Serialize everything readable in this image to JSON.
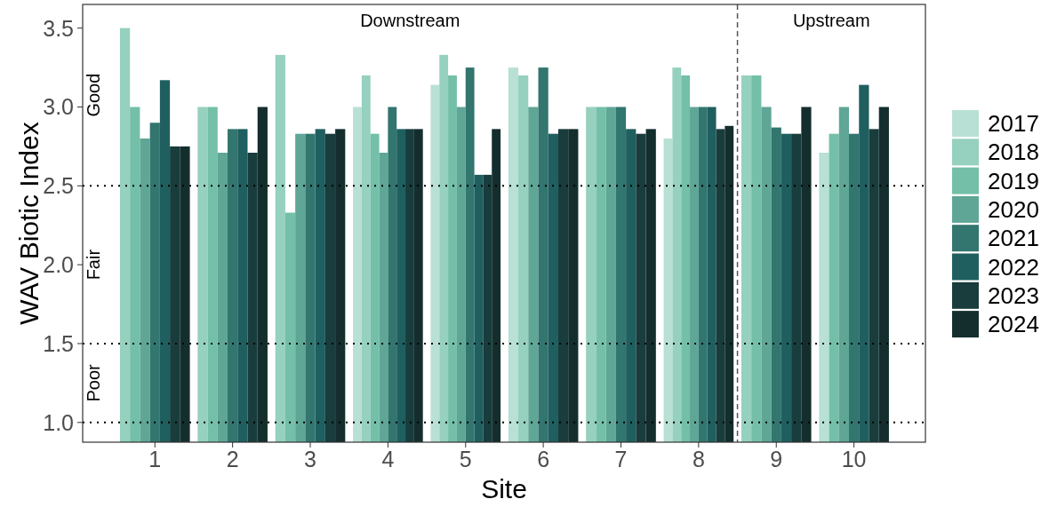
{
  "chart_data": {
    "type": "bar",
    "xlabel": "Site",
    "ylabel": "WAV Biotic Index",
    "x": [
      1,
      2,
      3,
      4,
      5,
      6,
      7,
      8,
      9,
      10
    ],
    "xlim": [
      0.07,
      10.92
    ],
    "xticks": [
      1,
      2,
      3,
      4,
      5,
      6,
      7,
      8,
      9,
      10
    ],
    "ylim": [
      0.875,
      3.65
    ],
    "yticks": [
      {
        "value": 1,
        "label": "1.0"
      },
      1.5,
      {
        "value": 2,
        "label": "2.0"
      },
      2.5,
      {
        "value": 3,
        "label": "3.0"
      },
      3.5
    ],
    "series": [
      {
        "name": "2017",
        "color": "#b8e0d5",
        "values": [
          null,
          null,
          null,
          3.0,
          3.14,
          3.25,
          null,
          2.8,
          null,
          2.71
        ]
      },
      {
        "name": "2018",
        "color": "#96d0bf",
        "values": [
          3.5,
          3.0,
          3.33,
          3.2,
          3.33,
          3.2,
          3.0,
          3.25,
          3.2,
          null
        ]
      },
      {
        "name": "2019",
        "color": "#74bfa8",
        "values": [
          3.0,
          3.0,
          2.33,
          2.83,
          3.2,
          null,
          3.0,
          3.2,
          3.2,
          2.83
        ]
      },
      {
        "name": "2020",
        "color": "#5fa696",
        "values": [
          2.8,
          2.71,
          2.83,
          2.71,
          3.0,
          3.0,
          3.0,
          3.0,
          3.0,
          3.0
        ]
      },
      {
        "name": "2021",
        "color": "#33756f",
        "values": [
          2.9,
          2.86,
          2.83,
          3.0,
          3.25,
          3.25,
          3.0,
          3.0,
          2.87,
          2.83
        ]
      },
      {
        "name": "2022",
        "color": "#1f5f5f",
        "values": [
          3.17,
          2.86,
          2.86,
          2.86,
          2.57,
          2.83,
          2.86,
          3.0,
          2.83,
          3.14
        ]
      },
      {
        "name": "2023",
        "color": "#193c3c",
        "values": [
          2.75,
          2.71,
          2.83,
          2.86,
          2.57,
          2.86,
          2.83,
          2.86,
          2.83,
          2.86
        ]
      },
      {
        "name": "2024",
        "color": "#142e2e",
        "values": [
          2.75,
          3.0,
          2.86,
          2.86,
          2.86,
          2.86,
          2.86,
          2.88,
          3.0,
          3.0
        ]
      }
    ],
    "ref_lines": [
      {
        "axis": "y",
        "value": 2.5,
        "color": "#000000",
        "line_style": "dotted"
      },
      {
        "axis": "y",
        "value": 1.5,
        "color": "#000000",
        "line_style": "dotted"
      },
      {
        "axis": "y",
        "value": 1.0,
        "color": "#000000",
        "line_style": "dotted"
      },
      {
        "axis": "x",
        "value": 8.5,
        "color": "#555555",
        "line_style": "dashed"
      }
    ],
    "annotations": [
      "Downstream",
      "Upstream",
      "Good",
      "Fair",
      "Poor"
    ],
    "legend": "right",
    "grid": false
  }
}
